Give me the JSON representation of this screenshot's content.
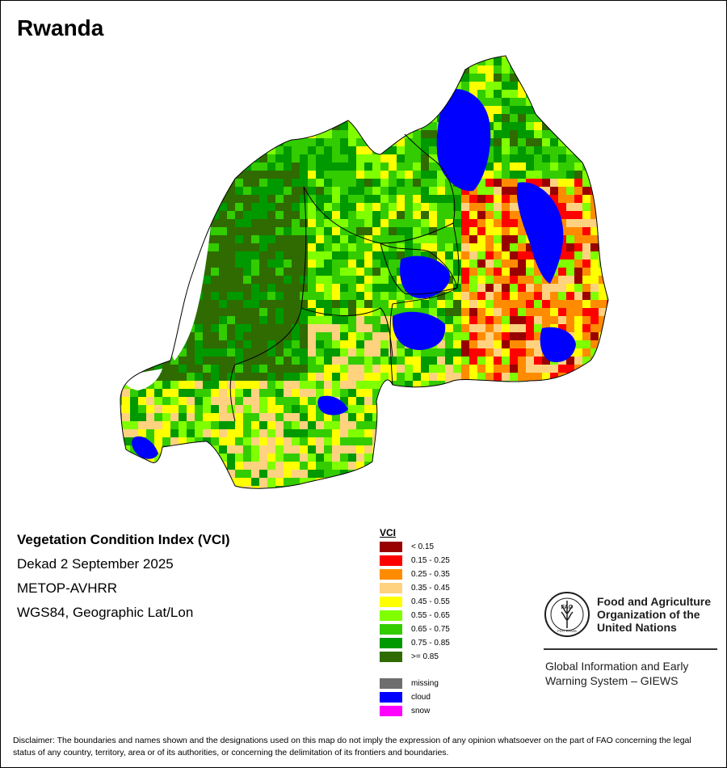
{
  "map": {
    "country": "Rwanda",
    "index_title": "Vegetation Condition Index (VCI)",
    "period": "Dekad 2 September 2025",
    "sensor": "METOP-AVHRR",
    "projection": "WGS84, Geographic Lat/Lon"
  },
  "legend": {
    "title": "VCI",
    "classes": [
      {
        "label": "< 0.15",
        "color": "#990000"
      },
      {
        "label": "0.15 - 0.25",
        "color": "#ff0000"
      },
      {
        "label": "0.25 - 0.35",
        "color": "#ff8c00"
      },
      {
        "label": "0.35 - 0.45",
        "color": "#ffd27f"
      },
      {
        "label": "0.45 - 0.55",
        "color": "#ffff00"
      },
      {
        "label": "0.55 - 0.65",
        "color": "#7fff00"
      },
      {
        "label": "0.65 - 0.75",
        "color": "#33cc00"
      },
      {
        "label": "0.75 - 0.85",
        "color": "#009900"
      },
      {
        "label": ">= 0.85",
        "color": "#2f6b00"
      }
    ],
    "special": [
      {
        "label": "missing",
        "color": "#6e6e6e"
      },
      {
        "label": "cloud",
        "color": "#0000ff"
      },
      {
        "label": "snow",
        "color": "#ff00ff"
      }
    ]
  },
  "organization": {
    "name_lines": [
      "Food and Agriculture",
      "Organization of the",
      "United Nations"
    ],
    "emblem_text": "FAO",
    "emblem_motto": "FIAT PANIS",
    "system_lines": [
      "Global Information and Early",
      "Warning System – GIEWS"
    ]
  },
  "disclaimer": "Disclaimer: The boundaries and names shown and the designations used on this map do not imply the expression of any opinion whatsoever on the part of FAO concerning the legal status of any country, territory, area or of its authorities, or concerning the delimitation of its frontiers and boundaries."
}
